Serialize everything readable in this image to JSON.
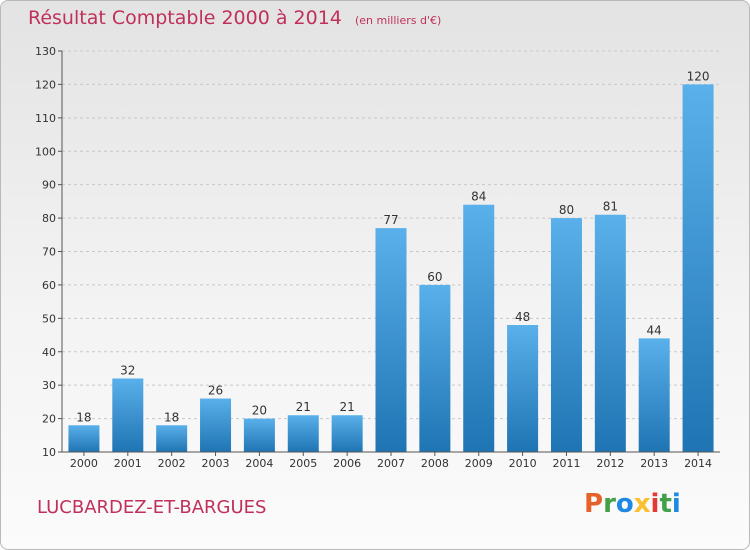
{
  "colors": {
    "accent": "#c0305a",
    "bar_light": "#5ab0ea",
    "bar_dark": "#1f74b3"
  },
  "commune": "LUCBARDEZ-ET-BARGUES",
  "brand": {
    "letters": [
      "P",
      "r",
      "o",
      "x",
      "i",
      "t",
      "i"
    ],
    "colors": [
      "#e6622b",
      "#43a047",
      "#1e88e5",
      "#fbc02d",
      "#e53935",
      "#43a047",
      "#1e88e5"
    ]
  },
  "chart_data": {
    "type": "bar",
    "title": "Résultat Comptable 2000 à 2014",
    "subtitle": "(en milliers d'€)",
    "xlabel": "",
    "ylabel": "",
    "categories": [
      "2000",
      "2001",
      "2002",
      "2003",
      "2004",
      "2005",
      "2006",
      "2007",
      "2008",
      "2009",
      "2010",
      "2011",
      "2012",
      "2013",
      "2014"
    ],
    "values": [
      18,
      32,
      18,
      26,
      20,
      21,
      21,
      77,
      60,
      84,
      48,
      80,
      81,
      44,
      120
    ],
    "ylim": [
      10,
      130
    ],
    "yticks": [
      10,
      20,
      30,
      40,
      50,
      60,
      70,
      80,
      90,
      100,
      110,
      120,
      130
    ],
    "grid": true,
    "legend": "none"
  }
}
